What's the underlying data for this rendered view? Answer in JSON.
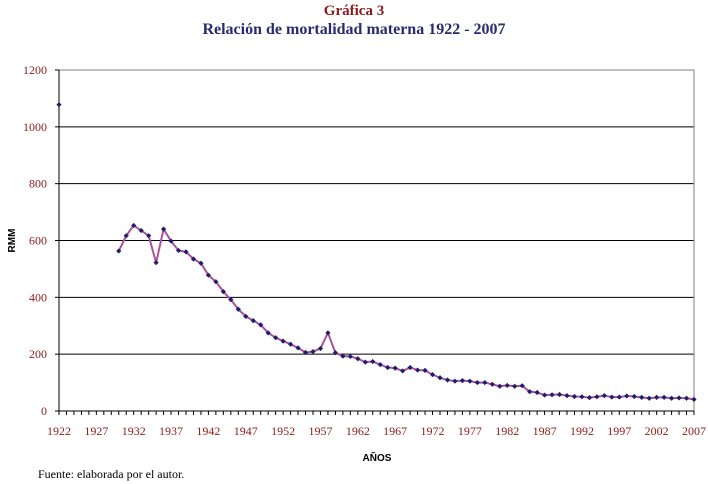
{
  "figure": {
    "number": "Gráfica 3",
    "title": "Relación de mortalidad materna 1922 - 2007",
    "source": "Fuente: elaborada por el autor."
  },
  "colors": {
    "line": "#b0509a",
    "marker": "#1e1e6e",
    "ticks": "#8b1a1a",
    "grid": "#000000"
  },
  "chart_data": {
    "type": "line",
    "title": "Relación de mortalidad materna 1922 - 2007",
    "xlabel": "AÑOS",
    "ylabel": "RMM",
    "xlim": [
      1922,
      2007
    ],
    "ylim": [
      0,
      1200
    ],
    "yticks": [
      0,
      200,
      400,
      600,
      800,
      1000,
      1200
    ],
    "xticks": [
      1922,
      1927,
      1932,
      1937,
      1942,
      1947,
      1952,
      1957,
      1962,
      1967,
      1972,
      1977,
      1982,
      1987,
      1992,
      1997,
      2002,
      2007
    ],
    "grid": true,
    "legend": "none",
    "series": [
      {
        "name": "RMM",
        "x": [
          1922,
          1930,
          1931,
          1932,
          1933,
          1934,
          1935,
          1936,
          1937,
          1938,
          1939,
          1940,
          1941,
          1942,
          1943,
          1944,
          1945,
          1946,
          1947,
          1948,
          1949,
          1950,
          1951,
          1952,
          1953,
          1954,
          1955,
          1956,
          1957,
          1958,
          1959,
          1960,
          1961,
          1962,
          1963,
          1964,
          1965,
          1966,
          1967,
          1968,
          1969,
          1970,
          1971,
          1972,
          1973,
          1974,
          1975,
          1976,
          1977,
          1978,
          1979,
          1980,
          1981,
          1982,
          1983,
          1984,
          1985,
          1986,
          1987,
          1988,
          1989,
          1990,
          1991,
          1992,
          1993,
          1994,
          1995,
          1996,
          1997,
          1998,
          1999,
          2000,
          2001,
          2002,
          2003,
          2004,
          2005,
          2006,
          2007
        ],
        "y": [
          1078,
          563,
          617,
          653,
          635,
          617,
          522,
          640,
          598,
          565,
          560,
          535,
          520,
          478,
          455,
          420,
          392,
          358,
          333,
          318,
          303,
          275,
          258,
          246,
          235,
          222,
          206,
          209,
          220,
          275,
          205,
          193,
          192,
          184,
          172,
          174,
          163,
          153,
          151,
          141,
          153,
          144,
          143,
          128,
          117,
          109,
          105,
          107,
          105,
          100,
          100,
          94,
          87,
          90,
          87,
          89,
          68,
          65,
          56,
          57,
          58,
          54,
          51,
          50,
          47,
          50,
          54,
          49,
          49,
          53,
          51,
          48,
          45,
          48,
          48,
          45,
          46,
          45,
          41
        ],
        "gap_after": 1922
      }
    ]
  }
}
